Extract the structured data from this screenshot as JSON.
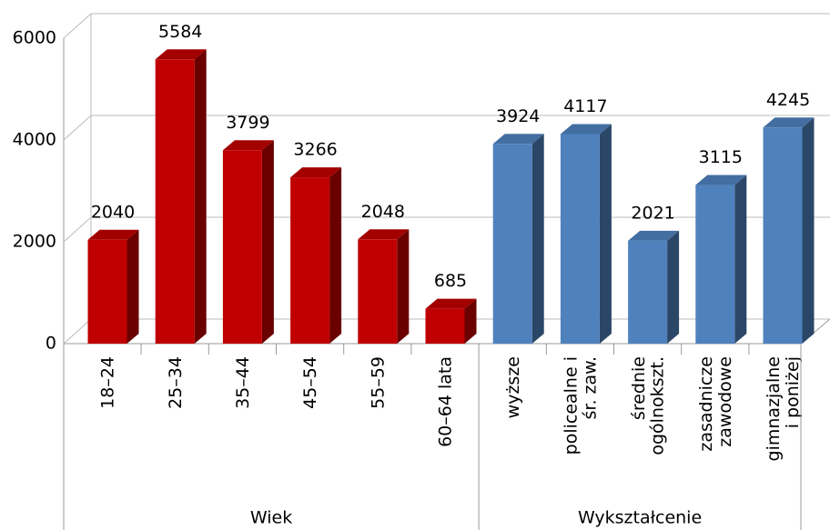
{
  "chart_data": {
    "type": "bar",
    "ylim": [
      0,
      6000
    ],
    "yticks": [
      0,
      2000,
      4000,
      6000
    ],
    "grid": true,
    "groups": [
      {
        "name": "Wiek",
        "color": "#c00000",
        "categories": [
          "18–24",
          "25–34",
          "35–44",
          "45–54",
          "55–59",
          "60–64 lata"
        ],
        "values": [
          2040,
          5584,
          3799,
          3266,
          2048,
          685
        ]
      },
      {
        "name": "Wykształcenie",
        "color": "#4f81bd",
        "categories": [
          "wyższe",
          "policealne i\nśr. zaw.",
          "średnie\nogólnokszt.",
          "zasadnicze\nzawodowe",
          "gimnazjalne\ni poniżej"
        ],
        "values": [
          3924,
          4117,
          2021,
          3115,
          4245
        ]
      }
    ]
  }
}
